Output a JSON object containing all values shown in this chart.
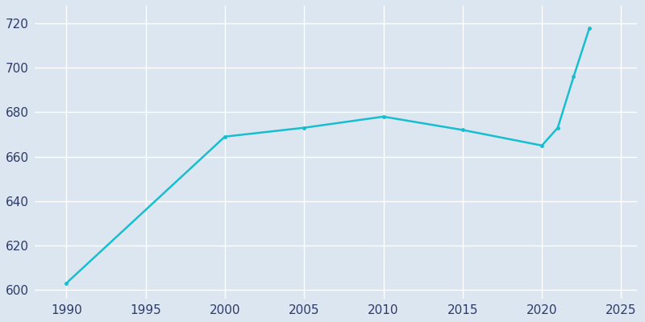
{
  "years": [
    1990,
    2000,
    2005,
    2010,
    2015,
    2020,
    2021,
    2022,
    2023
  ],
  "population": [
    603,
    669,
    673,
    678,
    672,
    665,
    673,
    696,
    718
  ],
  "line_color": "#17BECF",
  "plot_bg_color": "#DCE6F0",
  "fig_bg_color": "#DCE6F0",
  "grid_color": "#FFFFFF",
  "tick_color": "#2D3A6A",
  "xlim": [
    1988,
    2026
  ],
  "ylim": [
    596,
    728
  ],
  "xticks": [
    1990,
    1995,
    2000,
    2005,
    2010,
    2015,
    2020,
    2025
  ],
  "yticks": [
    600,
    620,
    640,
    660,
    680,
    700,
    720
  ],
  "linewidth": 1.8,
  "markersize": 3.5,
  "tick_fontsize": 11
}
